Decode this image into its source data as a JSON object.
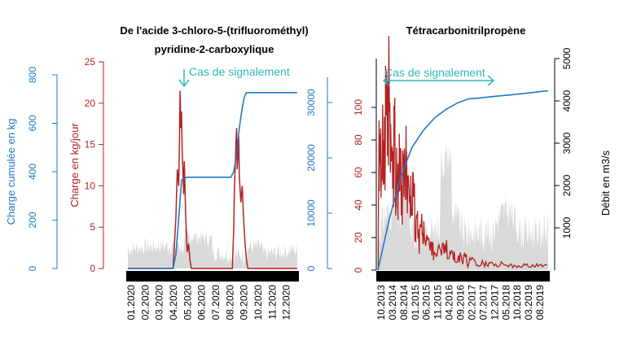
{
  "colors": {
    "load": "#b22222",
    "cumulative": "#1f78c8",
    "discharge": "#d9d9d9",
    "annotation": "#2eb8b8",
    "axis_black": "#000000"
  },
  "chart_data": [
    {
      "type": "area",
      "title_lines": [
        "De l'acide 3-chloro-5-(trifluorométhyl)",
        "pyridine-2-carboxylique"
      ],
      "annotation": "Cas de signalement",
      "y_cumulative_label": "Charge cumulée en kg",
      "y_load_label": "Charge en kg/jour",
      "x_ticks": [
        "01.2020",
        "02.2020",
        "03.2020",
        "04.2020",
        "05.2020",
        "06.2020",
        "07.2020",
        "08.2020",
        "09.2020",
        "10.2020",
        "11.2020",
        "12.2020"
      ],
      "cumulative_ticks": [
        "0",
        "200",
        "400",
        "600",
        "800"
      ],
      "load_ticks": [
        "0",
        "5",
        "10",
        "15",
        "20",
        "25"
      ],
      "discharge_ticks": [
        "0",
        "10000",
        "20000",
        "30000"
      ],
      "load_ylim": [
        0,
        25
      ],
      "discharge_ylim": [
        0,
        38000
      ],
      "cumulative_series": {
        "x": [
          0,
          3.2,
          3.4,
          3.6,
          3.8,
          4.2,
          7.3,
          7.5,
          7.7,
          7.9,
          8.1,
          8.25,
          8.4,
          8.6,
          8.8,
          11.99
        ],
        "discharge_units": [
          0,
          0,
          2500,
          9000,
          16000,
          16500,
          16500,
          17500,
          20500,
          25500,
          29000,
          31000,
          31800,
          31800,
          31800,
          31800
        ]
      },
      "load_series": {
        "x": [
          0,
          3.2,
          3.3,
          3.4,
          3.5,
          3.6,
          3.65,
          3.7,
          3.75,
          3.8,
          3.85,
          3.9,
          3.95,
          4.0,
          4.1,
          4.2,
          4.3,
          4.4,
          4.5,
          4.6,
          7.2,
          7.4,
          7.5,
          7.55,
          7.6,
          7.65,
          7.7,
          7.75,
          7.8,
          7.85,
          7.9,
          8.0,
          8.1,
          8.2,
          8.3,
          8.4,
          8.5,
          11.99
        ],
        "values": [
          0,
          0,
          3,
          6,
          12,
          10,
          15,
          21.5,
          17,
          19,
          14,
          12,
          9,
          13,
          6,
          2,
          3,
          1,
          0,
          0,
          0,
          0,
          5,
          10,
          12,
          15,
          17,
          12,
          14,
          16,
          11,
          8,
          10,
          6,
          3,
          1,
          0,
          0
        ]
      }
    },
    {
      "type": "area",
      "title": "Tétracarbonitrilpropène",
      "annotation": "Cas de signalement",
      "y_discharge_label": "Débit en m3/s",
      "x_ticks": [
        "10.2013",
        "03.2014",
        "08.2014",
        "01.2015",
        "06.2015",
        "11.2015",
        "04.2016",
        "09.2016",
        "02.2017",
        "07.2017",
        "12.2017",
        "05.2018",
        "10.2018",
        "03.2019",
        "08.2019"
      ],
      "load_ticks": [
        "0",
        "20",
        "40",
        "60",
        "80",
        "100"
      ],
      "discharge_ticks": [
        "1000",
        "2000",
        "3000",
        "4000",
        "5000"
      ],
      "load_ylim": [
        0,
        120
      ],
      "discharge_ylim": [
        0,
        5000
      ],
      "cumulative_series": {
        "x": [
          0,
          1,
          2,
          3,
          4,
          5,
          6,
          7,
          8,
          9,
          10,
          12,
          14,
          15
        ],
        "discharge_units": [
          0,
          1200,
          2200,
          2900,
          3300,
          3600,
          3800,
          3950,
          4050,
          4070,
          4100,
          4150,
          4210,
          4240
        ]
      },
      "load_series": {
        "x": [
          0,
          0.1,
          0.2,
          0.35,
          0.5,
          0.6,
          0.7,
          0.85,
          1.0,
          1.1,
          1.2,
          1.3,
          1.45,
          1.6,
          1.7,
          1.85,
          2.0,
          2.1,
          2.25,
          2.4,
          2.5,
          2.6,
          2.75,
          2.9,
          3.0,
          3.15,
          3.3,
          3.45,
          3.6,
          3.75,
          3.9,
          4.05,
          4.2,
          4.4,
          4.6,
          4.8,
          5.0,
          5.3,
          5.6,
          5.9,
          6.2,
          6.5,
          6.8,
          7.1,
          7.4,
          7.7,
          8.0,
          8.4,
          8.8,
          9.2,
          9.6,
          10.0,
          10.5,
          11.0,
          11.5,
          12.0,
          12.5,
          13.0,
          13.5,
          14.0,
          14.5,
          14.9
        ],
        "values": [
          0,
          92,
          75,
          55,
          80,
          62,
          95,
          70,
          112,
          60,
          75,
          50,
          85,
          40,
          65,
          48,
          75,
          52,
          68,
          55,
          70,
          35,
          50,
          58,
          38,
          45,
          25,
          32,
          18,
          28,
          22,
          30,
          15,
          20,
          12,
          17,
          10,
          14,
          9,
          16,
          7,
          12,
          5,
          9,
          6,
          8,
          4,
          7,
          3,
          6,
          3,
          5,
          2,
          4,
          2,
          3,
          2,
          3,
          2,
          4,
          2,
          3
        ]
      }
    }
  ]
}
